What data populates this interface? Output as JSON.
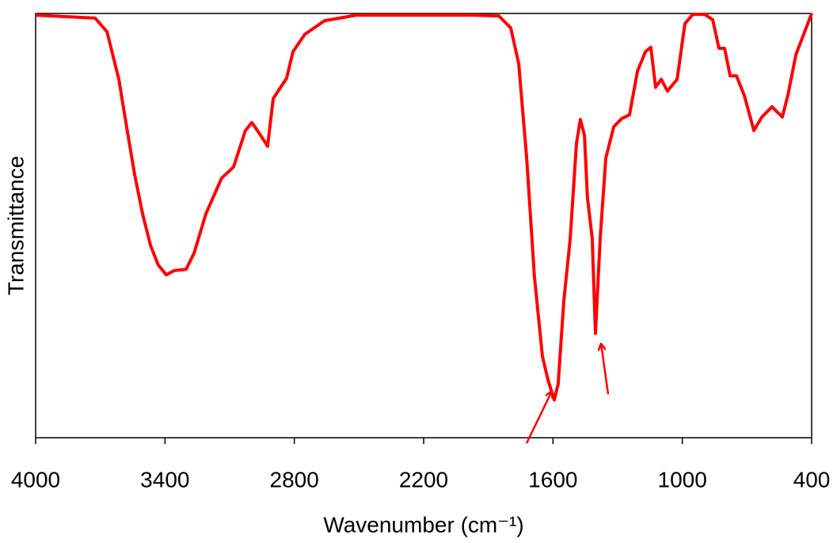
{
  "chart_data": {
    "type": "line",
    "xlabel": "Wavenumber (cm⁻¹)",
    "ylabel": "Transmittance",
    "xlim": [
      4000,
      400
    ],
    "xticks": [
      4000,
      3400,
      2800,
      2200,
      1600,
      1000,
      400
    ],
    "ylim": [
      0,
      100
    ],
    "series": [
      {
        "color": "#ff0000",
        "x": [
          4000,
          3724,
          3669,
          3614,
          3578,
          3541,
          3504,
          3467,
          3431,
          3394,
          3357,
          3302,
          3265,
          3210,
          3137,
          3082,
          3027,
          2997,
          2971,
          2935,
          2924,
          2898,
          2861,
          2836,
          2806,
          2751,
          2659,
          2512,
          1961,
          1851,
          1796,
          1759,
          1722,
          1686,
          1649,
          1623,
          1594,
          1576,
          1550,
          1520,
          1491,
          1473,
          1454,
          1440,
          1418,
          1403,
          1381,
          1355,
          1318,
          1282,
          1245,
          1208,
          1171,
          1146,
          1124,
          1098,
          1069,
          1024,
          988,
          951,
          896,
          859,
          830,
          804,
          778,
          749,
          712,
          668,
          631,
          584,
          536,
          510,
          473,
          400
        ],
        "values": [
          99.6,
          98.9,
          95.7,
          84.5,
          73.3,
          62.1,
          52.8,
          45.3,
          40.7,
          38.4,
          39.4,
          39.7,
          43.5,
          52.8,
          61.2,
          63.8,
          72.4,
          74.3,
          72.4,
          69.6,
          68.7,
          79.9,
          82.8,
          84.7,
          91.0,
          95.1,
          98.3,
          99.6,
          99.6,
          99.4,
          96.6,
          88.2,
          65.9,
          37.9,
          19.2,
          13.6,
          8.9,
          12.7,
          32.1,
          47.0,
          69.4,
          75.0,
          71.3,
          56.5,
          47.0,
          24.6,
          47.0,
          65.9,
          73.3,
          75.2,
          76.1,
          86.4,
          91.0,
          92.0,
          82.6,
          84.5,
          81.7,
          84.5,
          97.6,
          99.8,
          99.8,
          98.5,
          91.8,
          91.8,
          85.3,
          85.3,
          80.6,
          72.4,
          75.6,
          78.0,
          75.6,
          80.8,
          90.3,
          100
        ]
      }
    ]
  }
}
